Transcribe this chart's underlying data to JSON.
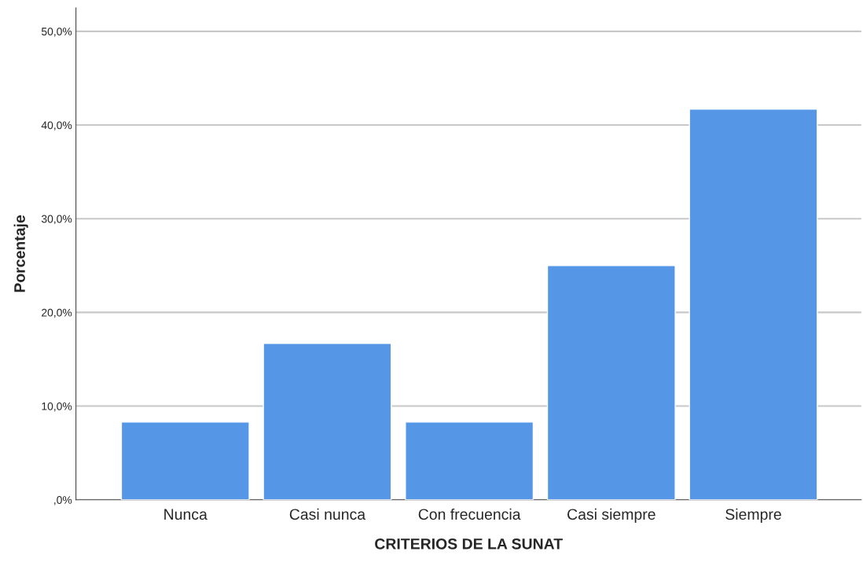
{
  "chart_data": {
    "type": "bar",
    "xlabel": "CRITERIOS DE LA SUNAT",
    "ylabel": "Porcentaje",
    "categories": [
      "Nunca",
      "Casi nunca",
      "Con frecuencia",
      "Casi siempre",
      "Siempre"
    ],
    "values": [
      8.3,
      16.7,
      8.3,
      25.0,
      41.7
    ],
    "color": "#5596e6",
    "ylim": [
      0,
      52.5
    ],
    "yticks": [
      {
        "value": 0,
        "label": ",0%"
      },
      {
        "value": 10,
        "label": "10,0%"
      },
      {
        "value": 20,
        "label": "20,0%"
      },
      {
        "value": 30,
        "label": "30,0%"
      },
      {
        "value": 40,
        "label": "40,0%"
      },
      {
        "value": 50,
        "label": "50,0%"
      }
    ],
    "grid": "y",
    "legend": false
  }
}
